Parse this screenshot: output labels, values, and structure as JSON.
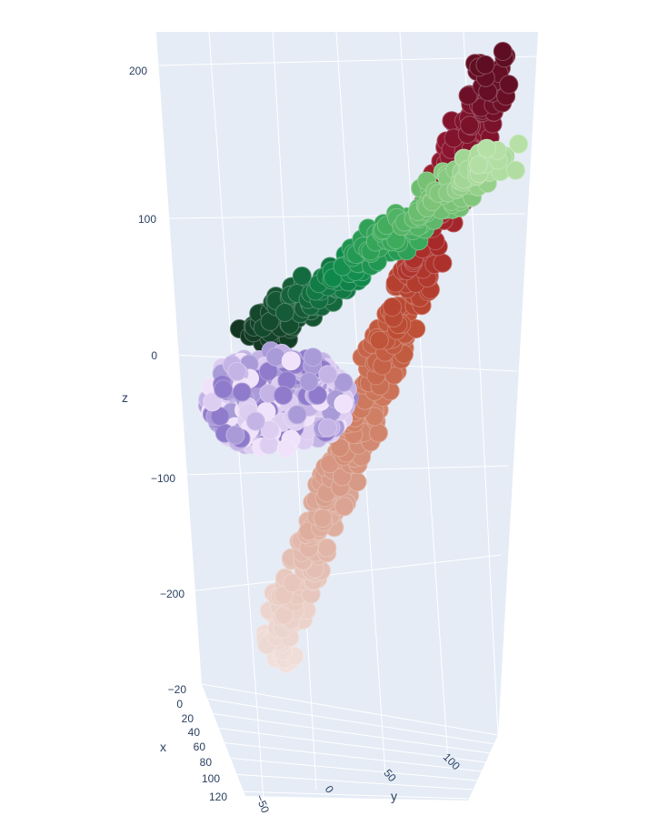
{
  "chart_data": {
    "type": "scatter3d",
    "title": "",
    "axes": {
      "x": {
        "label": "x",
        "range": [
          -20,
          120
        ],
        "ticks": [
          -20,
          0,
          20,
          40,
          60,
          80,
          100,
          120
        ],
        "tick_labels": [
          "−20",
          "0",
          "20",
          "40",
          "60",
          "80",
          "100",
          "120"
        ]
      },
      "y": {
        "label": "y",
        "range": [
          -50,
          130
        ],
        "ticks": [
          -50,
          0,
          50,
          100
        ],
        "tick_labels": [
          "−50",
          "0",
          "50",
          "100"
        ]
      },
      "z": {
        "label": "z",
        "range": [
          -300,
          220
        ],
        "ticks": [
          200,
          100,
          0,
          -100,
          -200
        ],
        "tick_labels": [
          "200",
          "100",
          "0",
          "−100",
          "−200"
        ]
      }
    },
    "grid": true,
    "legend": "none",
    "background": "#e5ecf6",
    "grid_color": "#ffffff",
    "series": [
      {
        "colorscale": "Reds (light to dark)",
        "description_points": [
          {
            "x": 20,
            "y": -20,
            "z": -285
          },
          {
            "x": 18,
            "y": -10,
            "z": -240
          },
          {
            "x": 15,
            "y": 0,
            "z": -190
          },
          {
            "x": 12,
            "y": 10,
            "z": -140
          },
          {
            "x": 10,
            "y": 20,
            "z": -95
          },
          {
            "x": 8,
            "y": 30,
            "z": -50
          },
          {
            "x": 6,
            "y": 40,
            "z": -5
          },
          {
            "x": 4,
            "y": 50,
            "z": 40
          },
          {
            "x": 2,
            "y": 60,
            "z": 90
          },
          {
            "x": 0,
            "y": 70,
            "z": 140
          },
          {
            "x": -2,
            "y": 80,
            "z": 185
          },
          {
            "x": -4,
            "y": 90,
            "z": 215
          }
        ]
      },
      {
        "colorscale": "Greens (dark to light)",
        "description_points": [
          {
            "x": 30,
            "y": -35,
            "z": 5
          },
          {
            "x": 25,
            "y": -20,
            "z": 25
          },
          {
            "x": 20,
            "y": -5,
            "z": 45
          },
          {
            "x": 15,
            "y": 10,
            "z": 60
          },
          {
            "x": 10,
            "y": 25,
            "z": 75
          },
          {
            "x": 5,
            "y": 40,
            "z": 90
          },
          {
            "x": 0,
            "y": 55,
            "z": 105
          },
          {
            "x": -5,
            "y": 70,
            "z": 120
          },
          {
            "x": -10,
            "y": 85,
            "z": 140
          }
        ]
      },
      {
        "colorscale": "Purples (light)",
        "description_points": [
          {
            "x": 40,
            "y": -45,
            "z": -30
          },
          {
            "x": 45,
            "y": -30,
            "z": -50
          },
          {
            "x": 50,
            "y": -15,
            "z": -40
          },
          {
            "x": 55,
            "y": 0,
            "z": -60
          },
          {
            "x": 60,
            "y": 10,
            "z": -45
          }
        ]
      }
    ]
  }
}
